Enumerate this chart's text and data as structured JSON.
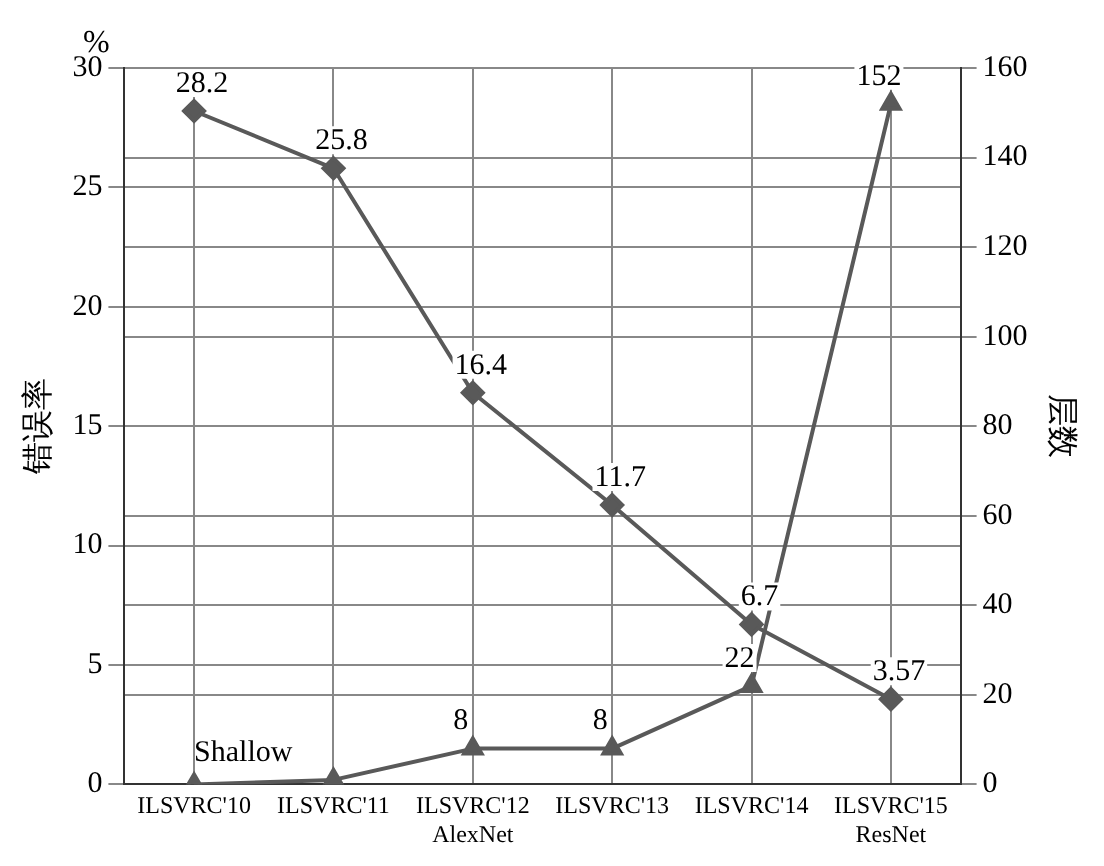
{
  "chart_data": {
    "type": "line",
    "ylabel": "错误率",
    "y2label": "层数",
    "categories": [
      "ILSVRC'10",
      "ILSVRC'11",
      "ILSVRC'12\nAlexNet",
      "ILSVRC'13",
      "ILSVRC'14",
      "ILSVRC'15\nResNet"
    ],
    "series": [
      {
        "color": "#595959",
        "marker": "diamond",
        "values": [
          28.2,
          25.8,
          16.4,
          11.7,
          6.7,
          3.57
        ],
        "value_labels": [
          "28.2",
          "25.8",
          "16.4",
          "11.7",
          "6.7",
          "3.57"
        ]
      },
      {
        "color": "#595959",
        "marker": "triangle",
        "axis": "y2",
        "values": [
          0,
          1,
          8,
          8,
          22,
          152
        ],
        "value_labels": [
          null,
          null,
          "8",
          "8",
          "22",
          "152"
        ]
      }
    ],
    "ylim": [
      0,
      30
    ],
    "yticks": [
      0,
      5,
      10,
      15,
      20,
      25,
      30
    ],
    "y2lim": [
      0,
      160
    ],
    "y2ticks": [
      0,
      20,
      40,
      60,
      80,
      100,
      120,
      140,
      160
    ],
    "grid": true,
    "line_style": "solid",
    "annotations": [
      "%",
      {
        "text": "Shallow",
        "x": "ILSVRC'10",
        "y": 0
      }
    ]
  }
}
